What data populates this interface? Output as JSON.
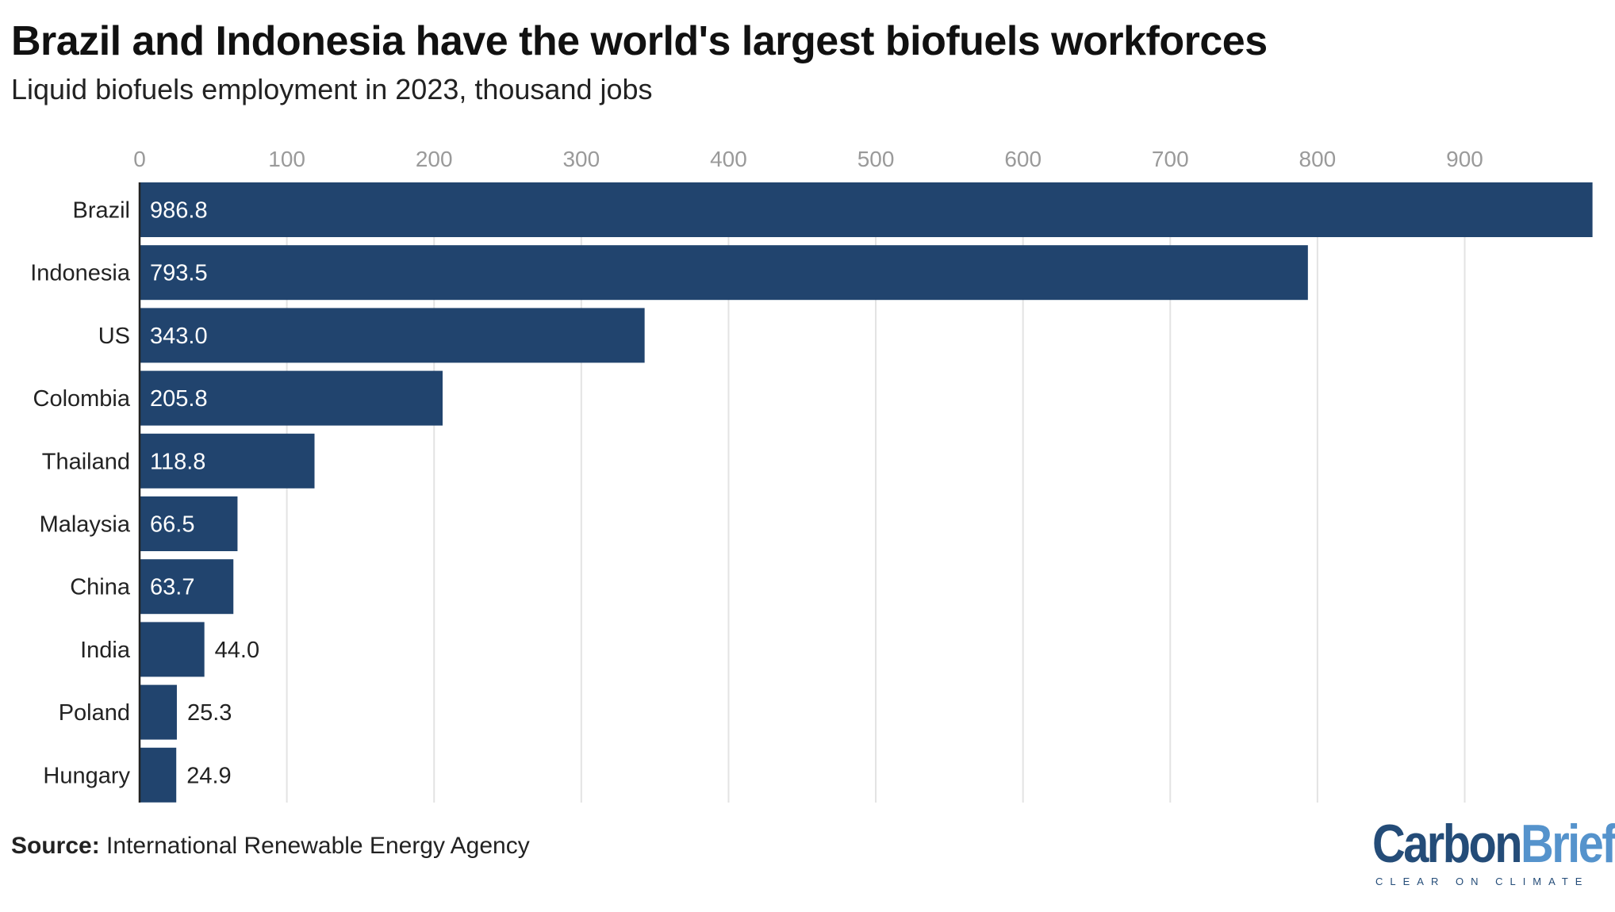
{
  "chart_data": {
    "type": "bar",
    "orientation": "horizontal",
    "title": "Brazil and Indonesia have the world's largest biofuels workforces",
    "subtitle": "Liquid biofuels employment in 2023, thousand jobs",
    "categories": [
      "Brazil",
      "Indonesia",
      "US",
      "Colombia",
      "Thailand",
      "Malaysia",
      "China",
      "India",
      "Poland",
      "Hungary"
    ],
    "values": [
      986.8,
      793.5,
      343.0,
      205.8,
      118.8,
      66.5,
      63.7,
      44.0,
      25.3,
      24.9
    ],
    "value_labels": [
      "986.8",
      "793.5",
      "343.0",
      "205.8",
      "118.8",
      "66.5",
      "63.7",
      "44.0",
      "25.3",
      "24.9"
    ],
    "xticks": [
      0,
      100,
      200,
      300,
      400,
      500,
      600,
      700,
      800,
      900
    ],
    "xlim": [
      0,
      987
    ],
    "grid": true,
    "xlabel": "",
    "ylabel": "",
    "bar_color": "#21446e"
  },
  "source": {
    "label": "Source:",
    "text": "International Renewable Energy Agency"
  },
  "logo": {
    "part1": "Carbon",
    "part2": "Brief",
    "tagline": "CLEAR ON CLIMATE"
  }
}
